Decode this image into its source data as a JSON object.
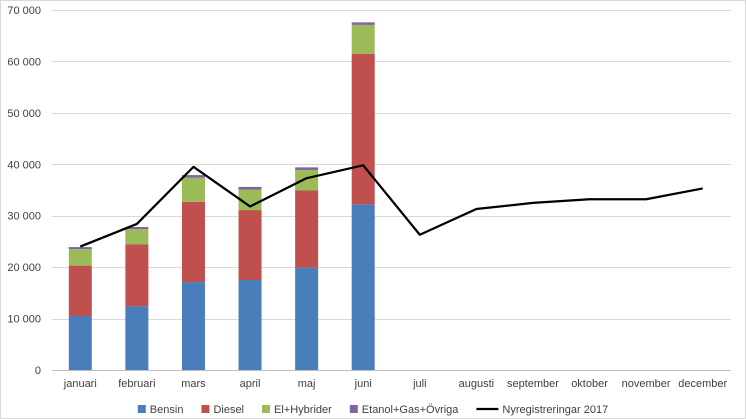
{
  "chart_data": {
    "type": "bar",
    "stacked": true,
    "title": "",
    "xlabel": "",
    "ylabel": "",
    "ylim": [
      0,
      70000
    ],
    "yticks": [
      0,
      10000,
      20000,
      30000,
      40000,
      50000,
      60000,
      70000
    ],
    "ytick_labels": [
      "0",
      "10 000",
      "20 000",
      "30 000",
      "40 000",
      "50 000",
      "60 000",
      "70 000"
    ],
    "grid": true,
    "legend_position": "bottom",
    "categories": [
      "januari",
      "februari",
      "mars",
      "april",
      "maj",
      "juni",
      "juli",
      "augusti",
      "september",
      "oktober",
      "november",
      "december"
    ],
    "series": [
      {
        "name": "Bensin",
        "type": "bar",
        "color": "#4a7ebb",
        "values": [
          10500,
          12400,
          17100,
          17500,
          19900,
          32200,
          null,
          null,
          null,
          null,
          null,
          null
        ]
      },
      {
        "name": "Diesel",
        "type": "bar",
        "color": "#c0504d",
        "values": [
          9800,
          12000,
          15600,
          13600,
          15000,
          29300,
          null,
          null,
          null,
          null,
          null,
          null
        ]
      },
      {
        "name": "El+Hybrider",
        "type": "bar",
        "color": "#9bbb59",
        "values": [
          3200,
          3000,
          4700,
          4000,
          4000,
          5600,
          null,
          null,
          null,
          null,
          null,
          null
        ]
      },
      {
        "name": "Etanol+Gas+Övriga",
        "type": "bar",
        "color": "#8064a2",
        "values": [
          400,
          400,
          500,
          500,
          500,
          500,
          null,
          null,
          null,
          null,
          null,
          null
        ]
      },
      {
        "name": "Nyregistreringar 2017",
        "type": "line",
        "color": "#000000",
        "values": [
          24000,
          28400,
          39500,
          31800,
          37300,
          39800,
          26300,
          31300,
          32500,
          33200,
          33200,
          35300
        ]
      }
    ]
  }
}
